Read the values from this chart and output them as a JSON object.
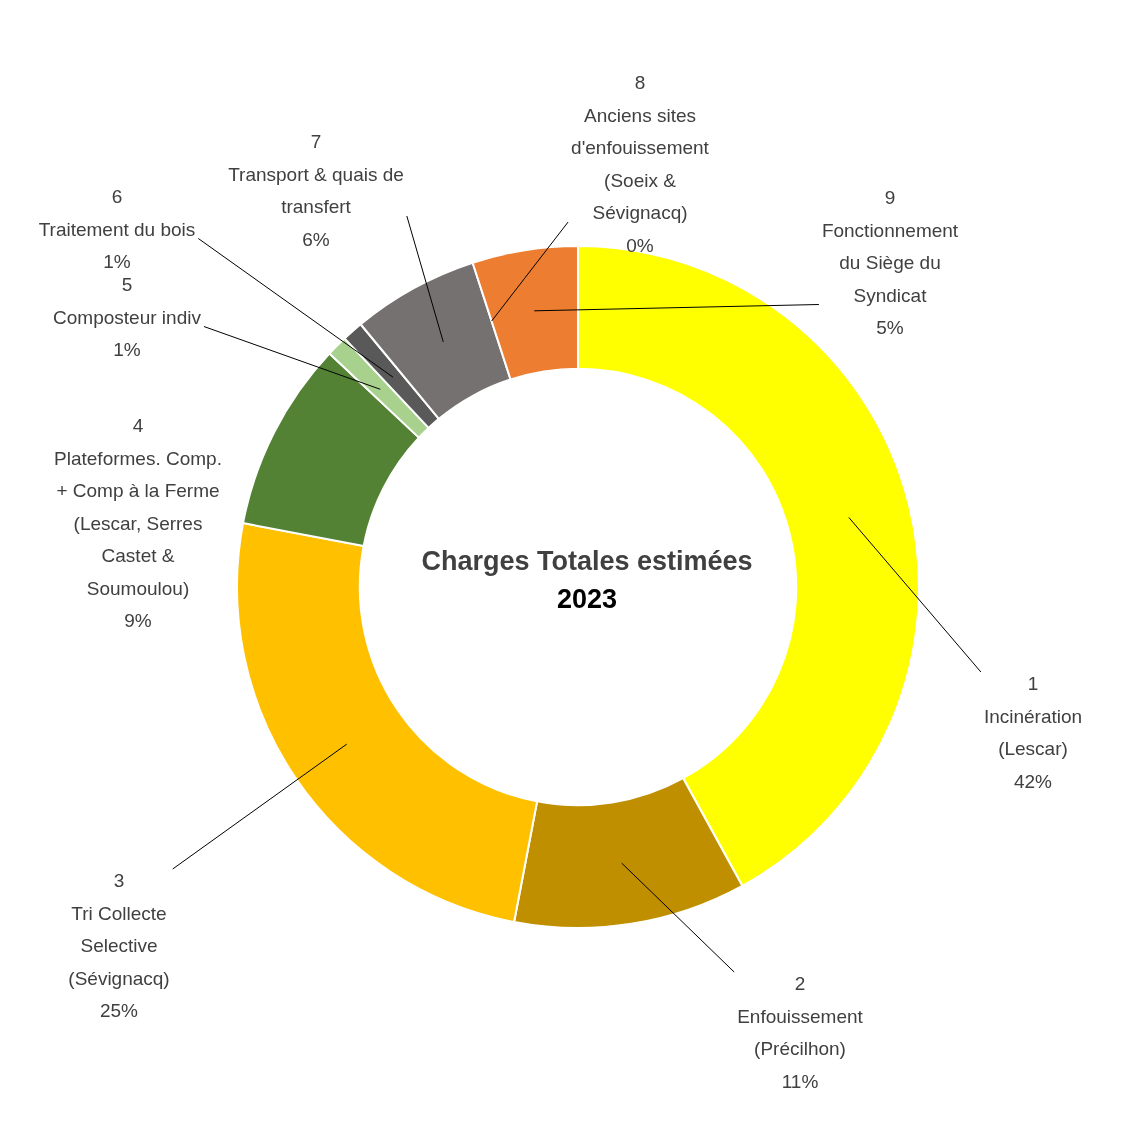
{
  "chart_data": {
    "type": "donut",
    "title": "Charges Totales estimées 2023",
    "categories": [
      "1 Incinération (Lescar)",
      "2 Enfouissement (Précilhon)",
      "3 Tri Collecte Selective (Sévignacq)",
      "4 Plateformes. Comp. + Comp à la Ferme (Lescar, Serres Castet & Soumoulou)",
      "5 Composteur indiv",
      "6 Traitement du bois",
      "7 Transport & quais de transfert",
      "8 Anciens sites d'enfouissement (Soeix & Sévignacq)",
      "9 Fonctionnement du Siège du Syndicat"
    ],
    "values": [
      42,
      11,
      25,
      9,
      1,
      1,
      6,
      0,
      5
    ],
    "value_labels": [
      "42%",
      "11%",
      "25%",
      "9%",
      "1%",
      "1%",
      "6%",
      "0%",
      "5%"
    ],
    "colors": [
      "#ffff00",
      "#bf8f00",
      "#ffc000",
      "#548235",
      "#a9d18e",
      "#595959",
      "#767171",
      "#c55a11",
      "#ed7d31"
    ],
    "legend": false
  }
}
